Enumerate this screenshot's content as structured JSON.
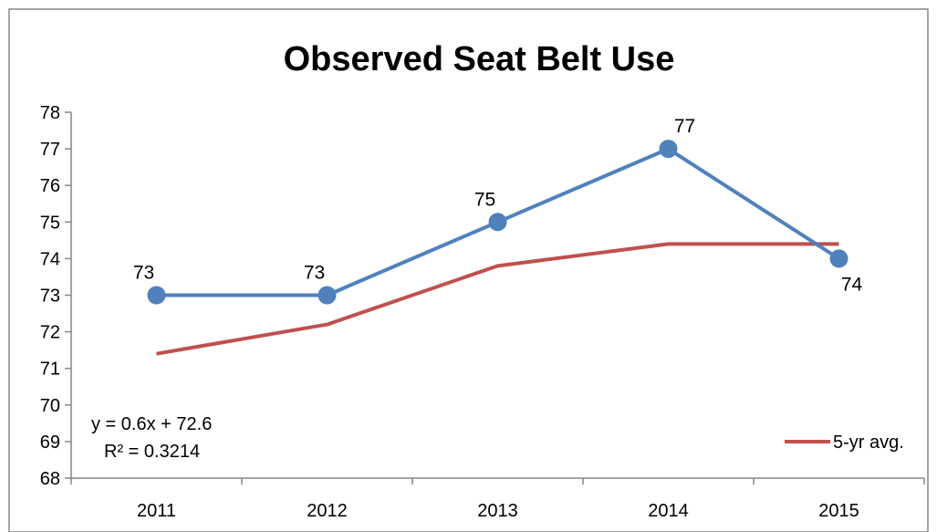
{
  "colors": {
    "series_line": "#4F81BD",
    "avg_line": "#C0504D",
    "axis": "#868686",
    "border": "#868686"
  },
  "chart_data": {
    "type": "line",
    "title": "Observed Seat Belt Use",
    "xlabel": "",
    "ylabel": "",
    "categories": [
      "2011",
      "2012",
      "2013",
      "2014",
      "2015"
    ],
    "ylim": [
      68,
      78
    ],
    "yticks": [
      68,
      69,
      70,
      71,
      72,
      73,
      74,
      75,
      76,
      77,
      78
    ],
    "ytick_labels": [
      "68",
      "69",
      "70",
      "71",
      "72",
      "73",
      "74",
      "75",
      "76",
      "77",
      "78"
    ],
    "grid": false,
    "series": [
      {
        "values": [
          73,
          73,
          75,
          77,
          74
        ],
        "data_labels": [
          "73",
          "73",
          "75",
          "77",
          "74"
        ],
        "markers": true
      },
      {
        "name": "5-yr avg.",
        "values": [
          71.4,
          72.2,
          73.8,
          74.4,
          74.4
        ],
        "markers": false
      }
    ],
    "legend": {
      "placement": "bottom-right",
      "entries": [
        "5-yr avg."
      ]
    },
    "annotations": {
      "trendline_equation": "y = 0.6x + 72.6",
      "r_squared": "R² = 0.3214"
    }
  }
}
